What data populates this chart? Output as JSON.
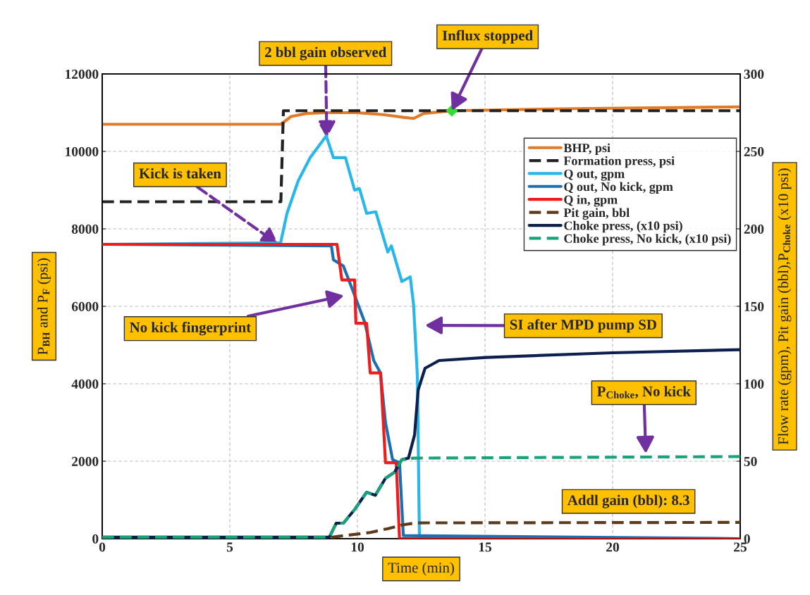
{
  "chart_data": {
    "type": "line",
    "xlabel": "Time (min)",
    "ylabel": "P$_{BH}$ and P$_{F}$ (psi)",
    "y2label": "Flow rate (gpm), Pit gain (bbl),P$_{Choke}$ (x10 psi)",
    "xlim": [
      0,
      25
    ],
    "xticks": [
      0,
      5,
      10,
      15,
      20,
      25
    ],
    "ylim": [
      0,
      12000
    ],
    "yticks": [
      0,
      2000,
      4000,
      6000,
      8000,
      10000,
      12000
    ],
    "y2lim": [
      0,
      300
    ],
    "y2ticks": [
      0,
      50,
      100,
      150,
      200,
      250,
      300
    ],
    "grid": true,
    "legend": "top right",
    "marker": "none",
    "series": [
      {
        "name": "BHP, psi",
        "color": "#e07b2a",
        "line_style": "solid",
        "x": [
          0,
          7.0,
          7.4,
          8.0,
          8.8,
          10.0,
          11.0,
          11.8,
          12.2,
          12.6,
          13.7,
          18,
          25
        ],
        "values": [
          10700,
          10700,
          10900,
          10980,
          11000,
          11000,
          10950,
          10880,
          10850,
          10980,
          11050,
          11100,
          11150
        ]
      },
      {
        "name": "Formation press, psi",
        "color": "#222222",
        "line_style": "dashed",
        "x": [
          0,
          7.0,
          7.1,
          25
        ],
        "values": [
          8700,
          8700,
          11050,
          11050
        ]
      },
      {
        "name": "Q out, gpm",
        "color": "#29b6e8",
        "line_style": "solid",
        "axis": "y2",
        "x": [
          0,
          6.99,
          7.24,
          7.68,
          8.15,
          8.78,
          9.06,
          9.53,
          9.89,
          10.08,
          10.36,
          10.72,
          11.19,
          11.33,
          11.74,
          12.07,
          12.2,
          12.35,
          12.43,
          25
        ],
        "values": [
          190,
          191,
          210,
          231,
          246,
          260,
          246,
          246,
          225,
          226,
          210,
          211,
          185,
          189,
          166,
          169,
          151,
          105,
          0,
          0
        ]
      },
      {
        "name": "Q out, No kick, gpm",
        "color": "#1f6fb0",
        "line_style": "solid",
        "axis": "y2",
        "x": [
          0,
          8.98,
          9.06,
          9.45,
          9.8,
          10.28,
          10.64,
          10.9,
          11.1,
          11.38,
          11.65,
          11.8,
          25
        ],
        "values": [
          190,
          189,
          180,
          176,
          161,
          140,
          115,
          107,
          75,
          51,
          49,
          2,
          0
        ]
      },
      {
        "name": "Q in, gpm",
        "color": "#ee1c1c",
        "line_style": "solid",
        "axis": "y2",
        "x": [
          0,
          9.2,
          9.39,
          9.89,
          9.94,
          10.36,
          10.5,
          10.91,
          11.1,
          11.52,
          11.65,
          25
        ],
        "values": [
          190,
          190,
          167,
          167,
          139,
          139,
          107,
          107,
          49,
          49,
          0,
          0
        ]
      },
      {
        "name": "Pit gain, bbl",
        "color": "#5c3a1a",
        "line_style": "dashed",
        "axis": "y2",
        "x": [
          0,
          8.8,
          9.5,
          10.5,
          11.2,
          11.8,
          12.3,
          25
        ],
        "values": [
          0.5,
          0.5,
          2,
          4,
          6.5,
          9,
          10.2,
          10.5
        ]
      },
      {
        "name": "Choke press, (x10 psi)",
        "color": "#0d1f4f",
        "line_style": "solid",
        "axis": "y2",
        "x": [
          0,
          8.9,
          9.17,
          9.45,
          9.9,
          10.36,
          10.7,
          11.1,
          11.46,
          11.74,
          12.0,
          12.24,
          12.38,
          12.65,
          13.2,
          15.05,
          20,
          25
        ],
        "values": [
          1,
          1,
          10,
          10,
          19,
          30,
          28,
          39,
          43,
          51,
          52,
          67,
          96,
          110,
          115,
          117,
          120,
          122
        ]
      },
      {
        "name": "Choke press, No kick, (x10 psi)",
        "color": "#1aa37a",
        "line_style": "dashed",
        "axis": "y2",
        "x": [
          0,
          8.9,
          9.17,
          9.45,
          9.9,
          10.36,
          10.7,
          11.1,
          11.46,
          11.74,
          12.2,
          25
        ],
        "values": [
          1,
          1,
          10,
          10,
          19,
          30,
          28,
          39,
          43,
          51,
          52,
          53
        ]
      },
      {
        "type": "scatter",
        "color": "#33dd33",
        "marker": "diamond",
        "x": [
          13.7
        ],
        "values": [
          11050
        ]
      }
    ],
    "annotations": [
      {
        "text": "2 bbl gain observed",
        "x": 8.8,
        "y": 10350
      },
      {
        "text": "Influx stopped",
        "x": 13.7,
        "y": 11050
      },
      {
        "text": "Kick is taken",
        "x": 6.9,
        "y": 7600
      },
      "No kick fingerprint",
      "SI after MPD pump SD",
      {
        "text": "P$_{Choke}$, No kick",
        "x": 21.3,
        "y": 2200
      },
      "Addl gain (bbl): 8.3"
    ]
  }
}
